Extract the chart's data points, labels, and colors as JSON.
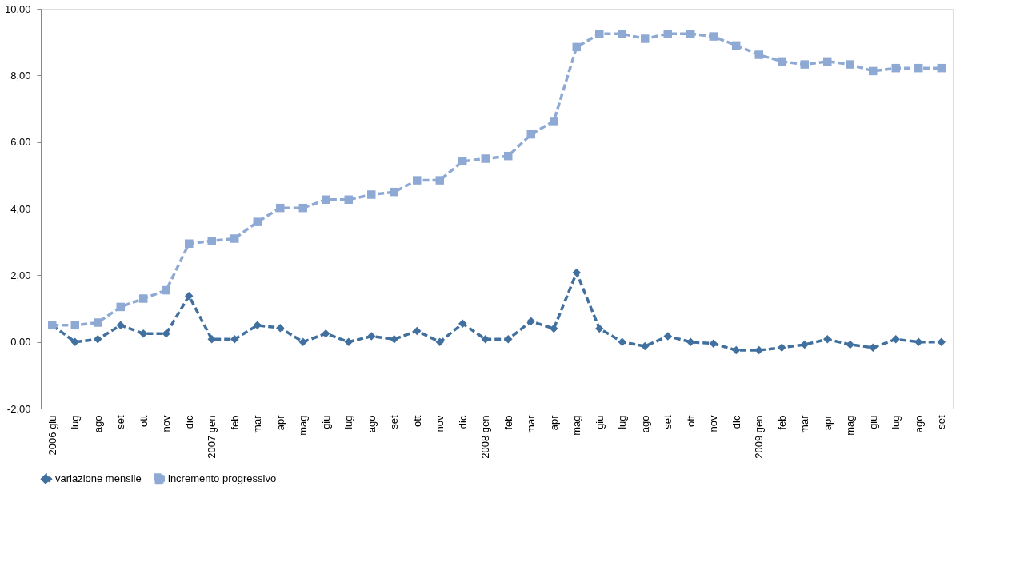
{
  "chart_data": {
    "type": "line",
    "categories": [
      "2006 giu",
      "lug",
      "ago",
      "set",
      "ott",
      "nov",
      "dic",
      "2007 gen",
      "feb",
      "mar",
      "apr",
      "mag",
      "giu",
      "lug",
      "ago",
      "set",
      "ott",
      "nov",
      "dic",
      "2008 gen",
      "feb",
      "mar",
      "apr",
      "mag",
      "giu",
      "lug",
      "ago",
      "set",
      "ott",
      "nov",
      "dic",
      "2009 gen",
      "feb",
      "mar",
      "apr",
      "mag",
      "giu",
      "lug",
      "ago",
      "set"
    ],
    "series": [
      {
        "name": "variazione mensile",
        "color": "#41709f",
        "marker": "diamond",
        "line_style": "dashed",
        "values": [
          0.5,
          0,
          0.08,
          0.5,
          0.25,
          0.25,
          1.38,
          0.08,
          0.08,
          0.5,
          0.42,
          0,
          0.25,
          0,
          0.17,
          0.08,
          0.33,
          0,
          0.55,
          0.08,
          0.08,
          0.62,
          0.4,
          2.08,
          0.4,
          0,
          -0.13,
          0.17,
          0,
          -0.05,
          -0.25,
          -0.25,
          -0.17,
          -0.08,
          0.08,
          -0.08,
          -0.17,
          0.08,
          0,
          0
        ]
      },
      {
        "name": "incremento progressivo",
        "color": "#8eaad4",
        "marker": "square",
        "line_style": "dashed",
        "values": [
          0.5,
          0.5,
          0.58,
          1.05,
          1.3,
          1.55,
          2.95,
          3.03,
          3.1,
          3.6,
          4.02,
          4.02,
          4.27,
          4.27,
          4.42,
          4.5,
          4.85,
          4.85,
          5.42,
          5.5,
          5.58,
          6.23,
          6.63,
          8.85,
          9.25,
          9.25,
          9.1,
          9.25,
          9.25,
          9.17,
          8.9,
          8.62,
          8.42,
          8.33,
          8.42,
          8.33,
          8.13,
          8.22,
          8.22,
          8.22
        ]
      }
    ],
    "ylim": [
      -2,
      10
    ],
    "yticks": [
      {
        "value": -2,
        "label": "-2,00"
      },
      {
        "value": 0,
        "label": "0,00"
      },
      {
        "value": 2,
        "label": "2,00"
      },
      {
        "value": 4,
        "label": "4,00"
      },
      {
        "value": 6,
        "label": "6,00"
      },
      {
        "value": 8,
        "label": "8,00"
      },
      {
        "value": 10,
        "label": "10,00"
      }
    ],
    "grid": false,
    "legend": "bottom"
  }
}
